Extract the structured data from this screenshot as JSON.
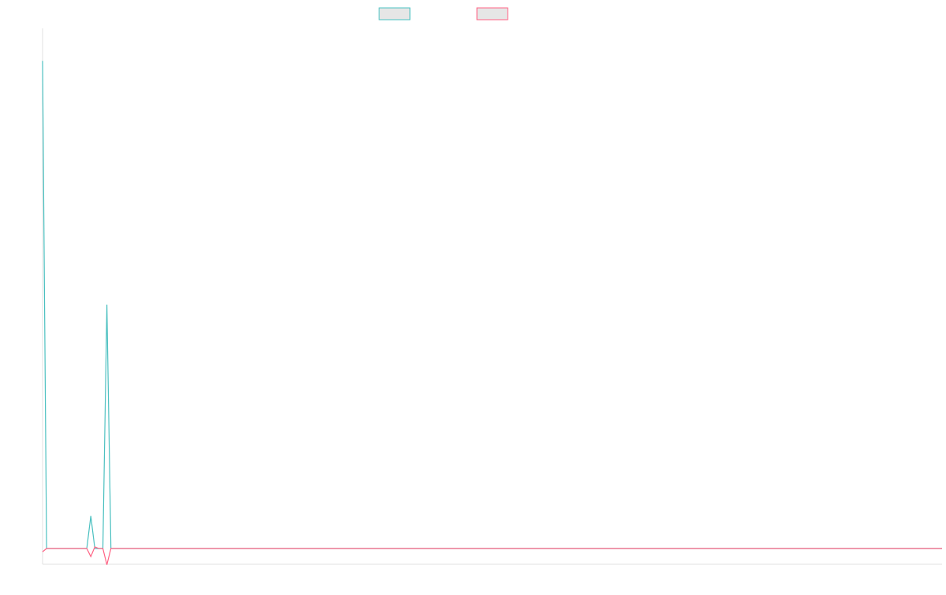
{
  "chart_data": {
    "type": "line",
    "title": "",
    "xlabel": "",
    "ylabel": "",
    "grid": false,
    "legend_position": "top-center",
    "x_points": 95,
    "ylim": [
      -1,
      32
    ],
    "series": [
      {
        "color": "#4bc0c0",
        "fill": "#e6e6e6",
        "values": [
          30,
          0,
          0,
          0,
          0,
          0,
          0,
          0,
          0,
          0,
          0,
          0,
          2,
          0,
          0,
          0,
          15,
          0,
          0,
          0,
          0,
          0,
          0,
          0,
          0,
          0,
          0,
          0,
          0,
          0,
          0,
          0,
          0,
          0,
          0,
          0,
          0,
          0,
          0,
          0,
          0,
          0,
          0,
          0,
          0,
          0,
          0,
          0,
          0,
          0,
          0,
          0,
          0,
          0,
          0,
          0,
          0,
          0,
          0,
          0,
          0,
          0,
          0,
          0,
          0,
          0,
          0,
          0,
          0,
          0,
          0,
          0,
          0,
          0,
          0,
          0,
          0,
          0,
          0,
          0,
          0,
          0,
          0,
          0,
          0,
          0,
          0,
          0,
          0,
          0,
          0,
          0,
          0,
          0,
          0
        ]
      },
      {
        "color": "#ff6384",
        "fill": "#e6e6e6",
        "values": [
          -0.2,
          0,
          0,
          0,
          0,
          0,
          0,
          0,
          0,
          0,
          0,
          0,
          -0.5,
          0.1,
          0,
          0,
          -1,
          0,
          0,
          0,
          0,
          0,
          0,
          0,
          0,
          0,
          0,
          0,
          0,
          0,
          0,
          0,
          0,
          0,
          0,
          0,
          0,
          0,
          0,
          0,
          0,
          0,
          0,
          0,
          0,
          0,
          0,
          0,
          0,
          0,
          0,
          0,
          0,
          0,
          0,
          0,
          0,
          0,
          0,
          0,
          0,
          0,
          0,
          0,
          0,
          0,
          0,
          0,
          0,
          0,
          0,
          0,
          0,
          0,
          0,
          0,
          0,
          0,
          0,
          0,
          0,
          0,
          0,
          0,
          0,
          0,
          0,
          0,
          0,
          0,
          0,
          0,
          0,
          0,
          0
        ]
      }
    ]
  }
}
